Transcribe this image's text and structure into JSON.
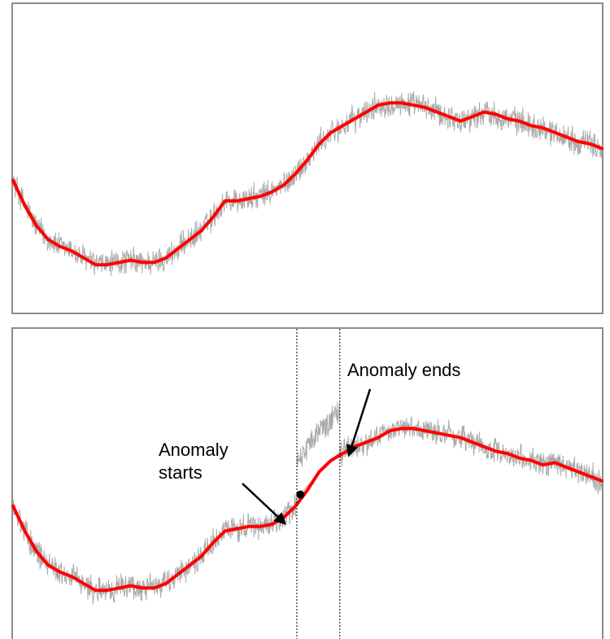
{
  "chart_data": [
    {
      "type": "line",
      "title": "",
      "xlabel": "",
      "ylabel": "",
      "grid": false,
      "xlim": [
        0,
        100
      ],
      "ylim": [
        0,
        100
      ],
      "x": [
        0,
        2,
        4,
        6,
        8,
        10,
        12,
        14,
        16,
        18,
        20,
        22,
        24,
        26,
        28,
        30,
        32,
        34,
        36,
        38,
        40,
        42,
        44,
        46,
        48,
        50,
        52,
        54,
        56,
        58,
        60,
        62,
        64,
        66,
        68,
        70,
        72,
        74,
        76,
        78,
        80,
        82,
        84,
        86,
        88,
        90,
        92,
        94,
        96,
        98,
        100
      ],
      "series": [
        {
          "role": "trend",
          "color": "#ff0000",
          "values": [
            53,
            42,
            33,
            27,
            24,
            22,
            19,
            16,
            16,
            17,
            18,
            17,
            17,
            19,
            23,
            27,
            31,
            37,
            44,
            44,
            45,
            46,
            48,
            51,
            56,
            62,
            69,
            74,
            77,
            80,
            83,
            86,
            87,
            87,
            86,
            85,
            83,
            81,
            79,
            81,
            83,
            82,
            80,
            79,
            77,
            76,
            74,
            72,
            70,
            69,
            67
          ]
        }
      ],
      "noise": {
        "color": "#ababab",
        "amplitude": 5
      }
    },
    {
      "type": "line",
      "title": "",
      "xlabel": "",
      "ylabel": "",
      "grid": false,
      "xlim": [
        0,
        100
      ],
      "ylim": [
        0,
        100
      ],
      "x": [
        0,
        2,
        4,
        6,
        8,
        10,
        12,
        14,
        16,
        18,
        20,
        22,
        24,
        26,
        28,
        30,
        32,
        34,
        36,
        38,
        40,
        42,
        44,
        46,
        48,
        50,
        52,
        54,
        56,
        58,
        60,
        62,
        64,
        66,
        68,
        70,
        72,
        74,
        76,
        78,
        80,
        82,
        84,
        86,
        88,
        90,
        92,
        94,
        96,
        98,
        100
      ],
      "series": [
        {
          "role": "trend",
          "color": "#ff0000",
          "values": [
            53,
            42,
            33,
            27,
            24,
            22,
            19,
            16,
            16,
            17,
            18,
            17,
            17,
            19,
            23,
            27,
            31,
            37,
            42,
            43,
            44,
            44,
            45,
            48,
            53,
            60,
            68,
            73,
            76,
            79,
            81,
            83,
            86,
            87,
            87,
            86,
            85,
            84,
            83,
            81,
            79,
            77,
            76,
            74,
            73,
            71,
            72,
            70,
            68,
            66,
            64
          ]
        }
      ],
      "noise": {
        "color": "#ababab",
        "amplitude": 5
      },
      "anomaly": {
        "start_x": 48.2,
        "end_x": 55.5,
        "offset": 18,
        "dot": {
          "x": 48.8,
          "y": 58
        }
      },
      "annotations": [
        {
          "text_lines": [
            "Anomaly ends"
          ],
          "target_x": 56.5,
          "target_y": 74
        },
        {
          "text_lines": [
            "Anomaly",
            "starts"
          ],
          "target_x": 46.7,
          "target_y": 44
        }
      ]
    }
  ]
}
